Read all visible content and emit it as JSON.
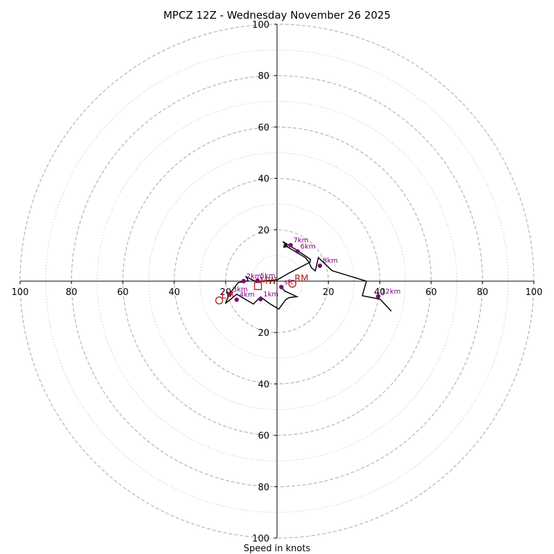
{
  "chart_data": {
    "type": "hodograph",
    "title": "MPCZ 12Z - Wednesday November 26 2025",
    "xlabel": "Speed in knots",
    "range": [
      -100,
      100
    ],
    "major_rings": [
      20,
      40,
      60,
      80,
      100
    ],
    "minor_rings": [
      10,
      30,
      50,
      70,
      90
    ],
    "x_tick_labels": [
      "100",
      "80",
      "60",
      "40",
      "20",
      "20",
      "40",
      "60",
      "80",
      "100"
    ],
    "x_tick_values": [
      -100,
      -80,
      -60,
      -40,
      -20,
      20,
      40,
      60,
      80,
      100
    ],
    "y_tick_labels": [
      "100",
      "80",
      "60",
      "40",
      "20",
      "20",
      "40",
      "60",
      "80",
      "100"
    ],
    "y_tick_values": [
      100,
      80,
      60,
      40,
      20,
      -20,
      -40,
      -60,
      -80,
      -100
    ],
    "hodograph_trace": [
      [
        44.5,
        -11.7
      ],
      [
        40.1,
        -7.0
      ],
      [
        33.2,
        -5.7
      ],
      [
        34.8,
        0.0
      ],
      [
        21.4,
        4.1
      ],
      [
        16.1,
        9.2
      ],
      [
        14.9,
        4.0
      ],
      [
        13.4,
        5.2
      ],
      [
        12.3,
        7.6
      ],
      [
        11.0,
        9.2
      ],
      [
        2.8,
        14.1
      ],
      [
        2.7,
        13.2
      ],
      [
        4.1,
        13.5
      ],
      [
        2.3,
        15.4
      ],
      [
        8.0,
        11.9
      ],
      [
        13.0,
        8.5
      ],
      [
        12.9,
        7.4
      ],
      [
        4.4,
        3.0
      ],
      [
        0.1,
        0.5
      ],
      [
        -8.2,
        -0.2
      ],
      [
        -12.0,
        1.7
      ],
      [
        -11.2,
        0.2
      ],
      [
        -15.1,
        -0.6
      ],
      [
        -18.5,
        -4.9
      ],
      [
        -20.1,
        -8.7
      ],
      [
        -15.7,
        -5.1
      ],
      [
        -9.2,
        -8.9
      ],
      [
        -6.4,
        -6.1
      ],
      [
        -3.1,
        -8.6
      ],
      [
        0.7,
        -10.9
      ],
      [
        3.4,
        -7.2
      ],
      [
        4.8,
        -6.4
      ],
      [
        7.7,
        -6.0
      ],
      [
        2.9,
        -3.8
      ],
      [
        1.7,
        -2.3
      ]
    ],
    "height_points": [
      {
        "label": "sfc",
        "x": 1.7,
        "y": -2.3
      },
      {
        "label": "1km",
        "x": -6.4,
        "y": -7.0
      },
      {
        "label": "2km",
        "x": -13.0,
        "y": 0.0
      },
      {
        "label": "3km",
        "x": -18.4,
        "y": -5.1
      },
      {
        "label": "4km",
        "x": -15.7,
        "y": -7.2
      },
      {
        "label": "5km",
        "x": -7.6,
        "y": 0.2
      },
      {
        "label": "6km",
        "x": 8.0,
        "y": 11.6
      },
      {
        "label": "7km",
        "x": 5.3,
        "y": 14.0
      },
      {
        "label": "8km",
        "x": 16.7,
        "y": 6.0
      },
      {
        "label": "12km",
        "x": 39.4,
        "y": -5.9
      }
    ],
    "storm_motion": [
      {
        "label": "RM",
        "x": 6.0,
        "y": -1.0
      },
      {
        "label": "MW",
        "x": -7.4,
        "y": -1.9
      },
      {
        "label": "LM",
        "x": -22.5,
        "y": -7.5
      }
    ]
  }
}
